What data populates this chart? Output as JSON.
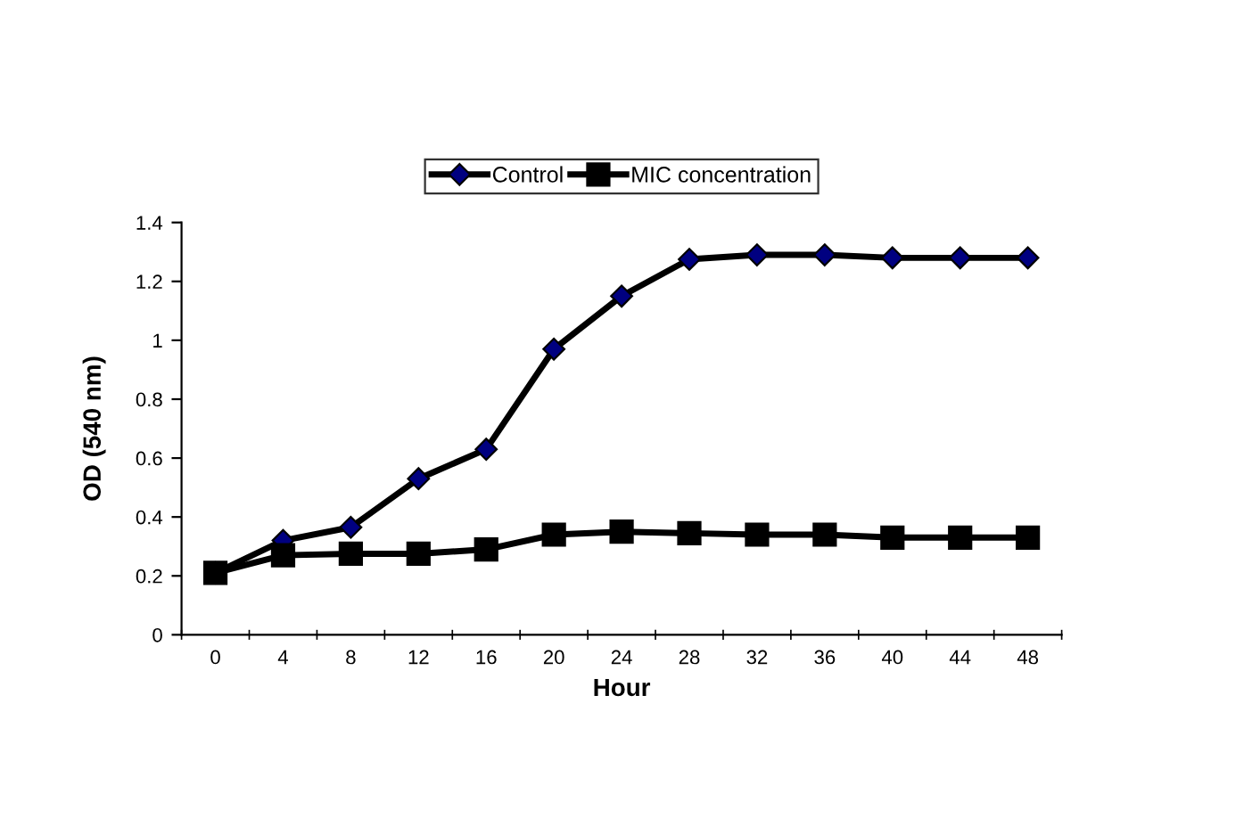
{
  "chart_data": {
    "type": "line",
    "xlabel": "Hour",
    "ylabel": "OD (540 nm)",
    "categories": [
      "0",
      "4",
      "8",
      "12",
      "16",
      "20",
      "24",
      "28",
      "32",
      "36",
      "40",
      "44",
      "48"
    ],
    "series": [
      {
        "name": "Control",
        "color": "#000080",
        "marker": "diamond",
        "values": [
          0.21,
          0.32,
          0.365,
          0.53,
          0.63,
          0.97,
          1.15,
          1.275,
          1.29,
          1.29,
          1.28,
          1.28,
          1.28
        ]
      },
      {
        "name": "MIC concentration",
        "color": "#000000",
        "marker": "square",
        "values": [
          0.21,
          0.27,
          0.275,
          0.275,
          0.29,
          0.34,
          0.35,
          0.345,
          0.34,
          0.34,
          0.33,
          0.33,
          0.33
        ]
      }
    ],
    "ylim": [
      0,
      1.4
    ],
    "yticks": [
      0,
      0.2,
      0.4,
      0.6,
      0.8,
      1,
      1.2,
      1.4
    ],
    "grid": false,
    "legend": "top",
    "line_style": "solid"
  }
}
